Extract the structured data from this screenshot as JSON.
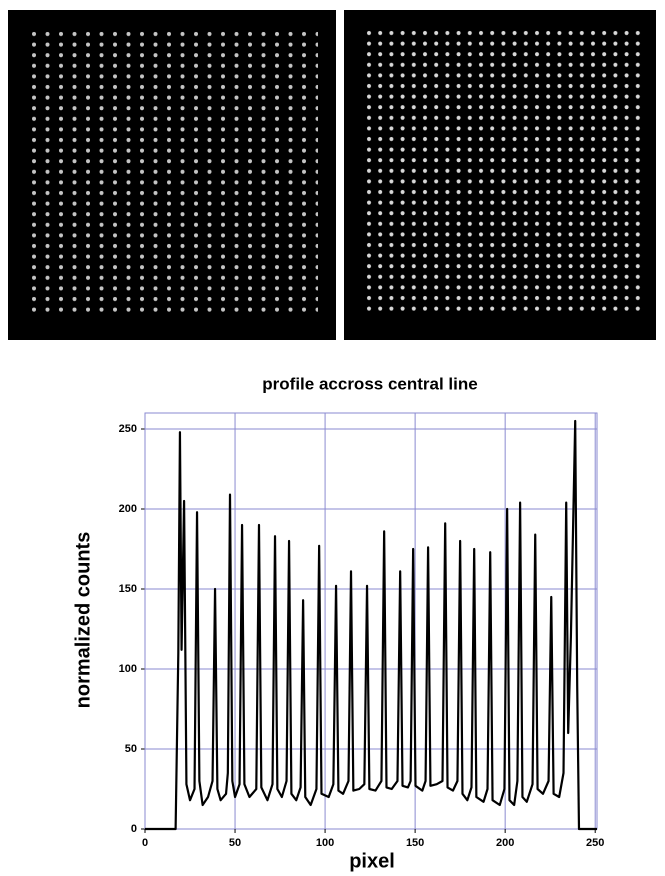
{
  "chart_data": {
    "type": "line",
    "title": "profile accross central line",
    "x_label": "pixel",
    "y_label": "normalized counts",
    "x": [
      0,
      17,
      18.5,
      19.4,
      20.3,
      21.7,
      23,
      25,
      27.5,
      28.9,
      30.2,
      32,
      35,
      37.5,
      38.9,
      40.2,
      42,
      45,
      46,
      47.2,
      48.5,
      50,
      52.5,
      53.9,
      55.2,
      58,
      61.8,
      63.3,
      64.6,
      68,
      70.8,
      72.2,
      73.5,
      76,
      78.6,
      80,
      81.3,
      84,
      86.4,
      87.8,
      89,
      92,
      95.2,
      96.7,
      98,
      102,
      104.6,
      106.1,
      107.4,
      110,
      113,
      114.4,
      115.7,
      119,
      121.8,
      123.3,
      124.6,
      128,
      131.3,
      132.8,
      134.1,
      137,
      140.2,
      141.7,
      143,
      146,
      147.5,
      148.9,
      150.2,
      154,
      155.8,
      157.2,
      158.5,
      162,
      165.2,
      166.7,
      168,
      171,
      173.5,
      175,
      176.3,
      179,
      181.3,
      182.8,
      184,
      188,
      190.2,
      191.7,
      193,
      197,
      199.6,
      201.1,
      202.4,
      205,
      206.8,
      208.3,
      209.6,
      212,
      215.2,
      216.7,
      218,
      221,
      224.1,
      225.6,
      226.9,
      230,
      232.4,
      233.9,
      235,
      236.5,
      238.9,
      240,
      241,
      251
    ],
    "values": [
      0,
      0,
      110,
      248,
      112,
      205,
      28,
      18,
      25,
      198,
      30,
      15,
      20,
      30,
      150,
      25,
      18,
      22,
      35,
      209,
      30,
      20,
      28,
      190,
      28,
      20,
      25,
      190,
      26,
      18,
      28,
      183,
      25,
      20,
      30,
      180,
      22,
      18,
      26,
      143,
      20,
      15,
      25,
      177,
      22,
      20,
      28,
      152,
      24,
      22,
      30,
      161,
      24,
      25,
      28,
      152,
      25,
      24,
      30,
      186,
      26,
      25,
      30,
      161,
      27,
      26,
      30,
      175,
      27,
      24,
      30,
      176,
      27,
      28,
      30,
      191,
      26,
      24,
      30,
      180,
      22,
      18,
      26,
      175,
      20,
      17,
      25,
      173,
      18,
      15,
      25,
      200,
      18,
      15,
      30,
      204,
      20,
      17,
      28,
      184,
      25,
      22,
      30,
      145,
      22,
      20,
      35,
      204,
      60,
      120,
      255,
      90,
      0,
      0
    ],
    "color": "#000000",
    "grid_color": "#8a8ad0",
    "xlim": [
      0,
      251
    ],
    "ylim": [
      0,
      260
    ],
    "xticks": [
      0,
      50,
      100,
      150,
      200,
      250
    ],
    "yticks": [
      0,
      50,
      100,
      150,
      200,
      250
    ],
    "grid": true
  }
}
